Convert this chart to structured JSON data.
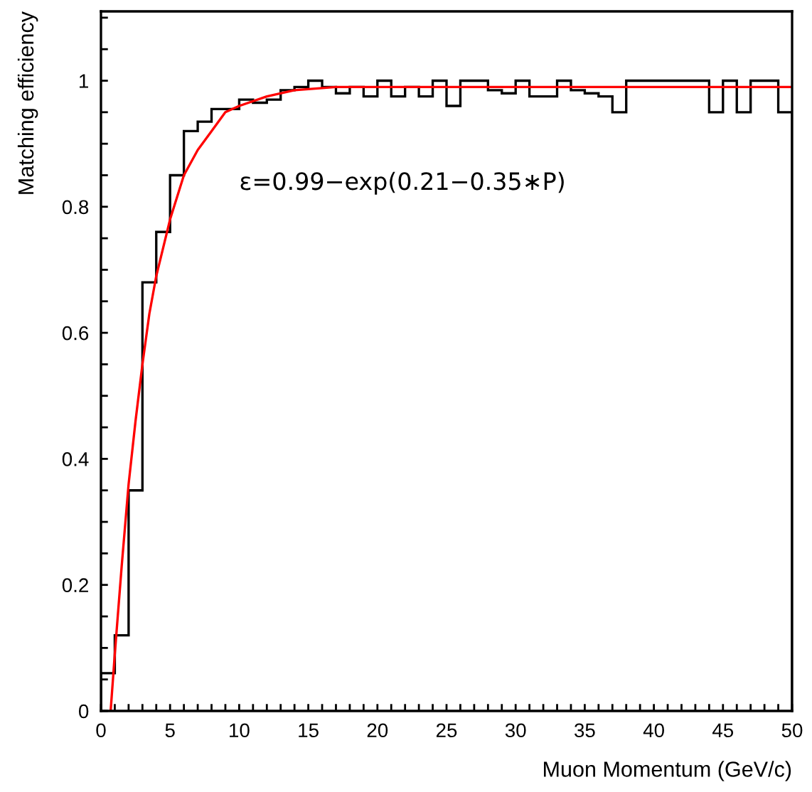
{
  "chart_data": {
    "type": "histogram",
    "xlabel": "Muon Momentum (GeV/c)",
    "ylabel": "Matching efficiency",
    "annotations": [
      "ε=0.99−exp(0.21−0.35∗P)"
    ],
    "bins": [
      0,
      1,
      2,
      3,
      4,
      5,
      6,
      7,
      8,
      9,
      10,
      11,
      12,
      13,
      14,
      15,
      16,
      17,
      18,
      19,
      20,
      21,
      22,
      23,
      24,
      25,
      26,
      27,
      28,
      29,
      30,
      31,
      32,
      33,
      34,
      35,
      36,
      37,
      38,
      39,
      40,
      41,
      42,
      43,
      44,
      45,
      46,
      47,
      48,
      49,
      50
    ],
    "series": [
      {
        "color": "#000000",
        "values": [
          0.06,
          0.12,
          0.35,
          0.68,
          0.76,
          0.85,
          0.92,
          0.935,
          0.955,
          0.955,
          0.97,
          0.965,
          0.97,
          0.985,
          0.99,
          1.0,
          0.99,
          0.98,
          0.99,
          0.975,
          1.0,
          0.975,
          0.99,
          0.975,
          1.0,
          0.96,
          1.0,
          1.0,
          0.985,
          0.98,
          1.0,
          0.975,
          0.975,
          1.0,
          0.985,
          0.98,
          0.975,
          0.95,
          1.0,
          1.0,
          1.0,
          1.0,
          1.0,
          1.0,
          0.95,
          1.0,
          0.95,
          1.0,
          1.0,
          0.95
        ]
      },
      {
        "type": "line",
        "color": "#ff0000",
        "x": [
          0.7,
          1,
          1.5,
          2,
          2.5,
          3,
          3.5,
          4,
          5,
          6,
          7,
          8,
          9,
          10,
          12,
          14,
          17,
          50
        ],
        "values": [
          0,
          0.09,
          0.23,
          0.36,
          0.46,
          0.55,
          0.63,
          0.69,
          0.78,
          0.85,
          0.89,
          0.92,
          0.95,
          0.96,
          0.975,
          0.985,
          0.99,
          0.99
        ]
      }
    ],
    "xlim": [
      0,
      50
    ],
    "ylim": [
      0,
      1.11
    ],
    "xticks": [
      0,
      {
        "value": 1,
        "label": null
      },
      {
        "value": 2,
        "label": null
      },
      {
        "value": 3,
        "label": null
      },
      {
        "value": 4,
        "label": null
      },
      5,
      {
        "value": 6,
        "label": null
      },
      {
        "value": 7,
        "label": null
      },
      {
        "value": 8,
        "label": null
      },
      {
        "value": 9,
        "label": null
      },
      10,
      {
        "value": 11,
        "label": null
      },
      {
        "value": 12,
        "label": null
      },
      {
        "value": 13,
        "label": null
      },
      {
        "value": 14,
        "label": null
      },
      15,
      {
        "value": 16,
        "label": null
      },
      {
        "value": 17,
        "label": null
      },
      {
        "value": 18,
        "label": null
      },
      {
        "value": 19,
        "label": null
      },
      20,
      {
        "value": 21,
        "label": null
      },
      {
        "value": 22,
        "label": null
      },
      {
        "value": 23,
        "label": null
      },
      {
        "value": 24,
        "label": null
      },
      25,
      {
        "value": 26,
        "label": null
      },
      {
        "value": 27,
        "label": null
      },
      {
        "value": 28,
        "label": null
      },
      {
        "value": 29,
        "label": null
      },
      30,
      {
        "value": 31,
        "label": null
      },
      {
        "value": 32,
        "label": null
      },
      {
        "value": 33,
        "label": null
      },
      {
        "value": 34,
        "label": null
      },
      35,
      {
        "value": 36,
        "label": null
      },
      {
        "value": 37,
        "label": null
      },
      {
        "value": 38,
        "label": null
      },
      {
        "value": 39,
        "label": null
      },
      40,
      {
        "value": 41,
        "label": null
      },
      {
        "value": 42,
        "label": null
      },
      {
        "value": 43,
        "label": null
      },
      {
        "value": 44,
        "label": null
      },
      45,
      {
        "value": 46,
        "label": null
      },
      {
        "value": 47,
        "label": null
      },
      {
        "value": 48,
        "label": null
      },
      {
        "value": 49,
        "label": null
      },
      50
    ],
    "yticks": [
      0,
      {
        "value": 0.05,
        "label": null
      },
      {
        "value": 0.1,
        "label": null
      },
      {
        "value": 0.15,
        "label": null
      },
      0.2,
      {
        "value": 0.25,
        "label": null
      },
      {
        "value": 0.3,
        "label": null
      },
      {
        "value": 0.35,
        "label": null
      },
      0.4,
      {
        "value": 0.45,
        "label": null
      },
      {
        "value": 0.5,
        "label": null
      },
      {
        "value": 0.55,
        "label": null
      },
      0.6,
      {
        "value": 0.65,
        "label": null
      },
      {
        "value": 0.7,
        "label": null
      },
      {
        "value": 0.75,
        "label": null
      },
      0.8,
      {
        "value": 0.85,
        "label": null
      },
      {
        "value": 0.9,
        "label": null
      },
      {
        "value": 0.95,
        "label": null
      },
      1,
      {
        "value": 1.05,
        "label": null
      },
      {
        "value": 1.1,
        "label": null
      }
    ],
    "grid": false,
    "legend": false
  }
}
